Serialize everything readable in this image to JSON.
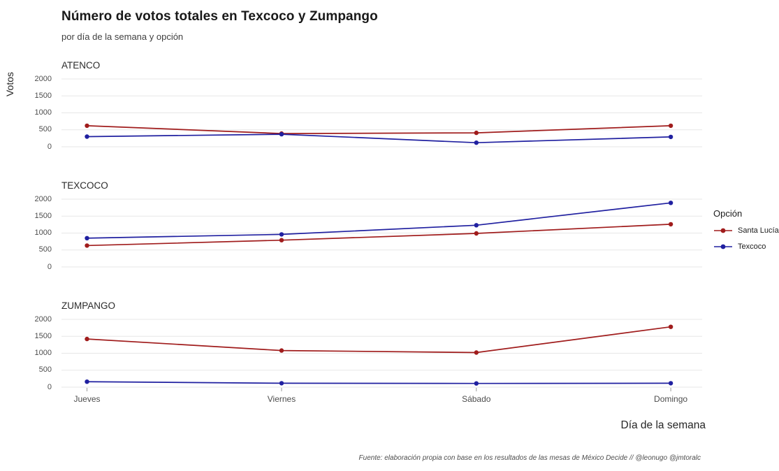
{
  "header": {
    "title": "Número de votos totales en Texcoco y Zumpango",
    "subtitle": "por día de la semana y opción"
  },
  "axes": {
    "y_label": "Votos",
    "x_label": "Día de la semana"
  },
  "legend": {
    "title": "Opción",
    "items": [
      {
        "label": "Santa Lucía",
        "color": "#A01C1C"
      },
      {
        "label": "Texcoco",
        "color": "#2020A0"
      }
    ]
  },
  "caption": "Fuente: elaboración propia con base en los resultados de las mesas de México Decide // @leonugo @jmtoralc",
  "chart_data": {
    "type": "line",
    "title": "Número de votos totales en Texcoco y Zumpango",
    "subtitle": "por día de la semana y opción",
    "xlabel": "Día de la semana",
    "ylabel": "Votos",
    "categories": [
      "Jueves",
      "Viernes",
      "Sábado",
      "Domingo"
    ],
    "ylim": [
      0,
      2000
    ],
    "yticks": [
      0,
      500,
      1000,
      1500,
      2000
    ],
    "grid": true,
    "legend_position": "right",
    "legend_title": "Opción",
    "facets": [
      {
        "title": "ATENCO",
        "series": [
          {
            "name": "Santa Lucía",
            "color": "#A01C1C",
            "values": [
              620,
              390,
              410,
              620
            ]
          },
          {
            "name": "Texcoco",
            "color": "#2020A0",
            "values": [
              300,
              370,
              120,
              290
            ]
          }
        ]
      },
      {
        "title": "TEXCOCO",
        "series": [
          {
            "name": "Santa Lucía",
            "color": "#A01C1C",
            "values": [
              630,
              790,
              990,
              1260
            ]
          },
          {
            "name": "Texcoco",
            "color": "#2020A0",
            "values": [
              850,
              960,
              1230,
              1890
            ]
          }
        ]
      },
      {
        "title": "ZUMPANGO",
        "series": [
          {
            "name": "Santa Lucía",
            "color": "#A01C1C",
            "values": [
              1420,
              1080,
              1020,
              1780
            ]
          },
          {
            "name": "Texcoco",
            "color": "#2020A0",
            "values": [
              160,
              115,
              110,
              115
            ]
          }
        ]
      }
    ]
  }
}
